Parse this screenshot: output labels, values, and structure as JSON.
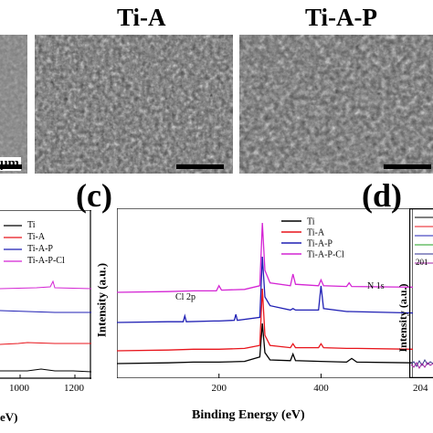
{
  "top_row": {
    "panels": [
      {
        "title": "",
        "scale_text": "μm"
      },
      {
        "title": "Ti-A",
        "scale_text": ""
      },
      {
        "title": "Ti-A-P",
        "scale_text": ""
      }
    ]
  },
  "panel_c": {
    "label": "(c)",
    "annotations": {
      "cl2p": "Cl 2p",
      "n1s": "N 1s"
    }
  },
  "panel_d": {
    "label": "(d)",
    "peak_label": "201",
    "ylabel": "Intensity (a.u.)",
    "tick": "204"
  },
  "left_panel": {
    "tick_labels": [
      "1000",
      "1200"
    ],
    "legend": [
      "Ti",
      "Ti-A",
      "Ti-A-P",
      "Ti-A-P-Cl"
    ],
    "xlabel_fragment": "eV)"
  },
  "chart_data": [
    {
      "type": "line",
      "title": "",
      "xlabel": "Binding Energy (eV)",
      "ylabel": "Intensity (a.u.)",
      "xticks": [
        200,
        400
      ],
      "xlim": [
        0,
        580
      ],
      "legend_position": "top-right",
      "series": [
        {
          "name": "Ti",
          "color": "#000000",
          "points": [
            [
              0,
              5
            ],
            [
              100,
              6
            ],
            [
              150,
              7
            ],
            [
              200,
              7
            ],
            [
              250,
              8
            ],
            [
              280,
              14
            ],
            [
              285,
              60
            ],
            [
              290,
              20
            ],
            [
              300,
              10
            ],
            [
              340,
              9
            ],
            [
              345,
              18
            ],
            [
              350,
              9
            ],
            [
              400,
              8
            ],
            [
              450,
              7
            ],
            [
              460,
              12
            ],
            [
              470,
              7
            ],
            [
              580,
              6
            ]
          ]
        },
        {
          "name": "Ti-A",
          "color": "#e8141b",
          "points": [
            [
              0,
              5
            ],
            [
              100,
              6
            ],
            [
              150,
              7
            ],
            [
              200,
              7
            ],
            [
              250,
              8
            ],
            [
              280,
              12
            ],
            [
              285,
              85
            ],
            [
              290,
              25
            ],
            [
              300,
              12
            ],
            [
              340,
              9
            ],
            [
              345,
              14
            ],
            [
              350,
              9
            ],
            [
              395,
              9
            ],
            [
              400,
              14
            ],
            [
              405,
              9
            ],
            [
              450,
              8
            ],
            [
              470,
              8
            ],
            [
              580,
              7
            ]
          ]
        },
        {
          "name": "Ti-A-P",
          "color": "#1f1fb4",
          "points": [
            [
              0,
              5
            ],
            [
              100,
              6
            ],
            [
              130,
              6
            ],
            [
              133,
              14
            ],
            [
              136,
              6
            ],
            [
              190,
              7
            ],
            [
              200,
              7
            ],
            [
              230,
              8
            ],
            [
              233,
              16
            ],
            [
              236,
              8
            ],
            [
              280,
              12
            ],
            [
              285,
              95
            ],
            [
              290,
              40
            ],
            [
              300,
              28
            ],
            [
              340,
              22
            ],
            [
              345,
              24
            ],
            [
              350,
              22
            ],
            [
              395,
              22
            ],
            [
              400,
              55
            ],
            [
              405,
              24
            ],
            [
              450,
              20
            ],
            [
              580,
              18
            ]
          ]
        },
        {
          "name": "Ti-A-P-Cl",
          "color": "#d425d4",
          "points": [
            [
              0,
              5
            ],
            [
              100,
              6
            ],
            [
              150,
              7
            ],
            [
              195,
              7
            ],
            [
              200,
              14
            ],
            [
              205,
              8
            ],
            [
              250,
              9
            ],
            [
              280,
              14
            ],
            [
              285,
              100
            ],
            [
              290,
              35
            ],
            [
              300,
              18
            ],
            [
              340,
              14
            ],
            [
              345,
              30
            ],
            [
              350,
              16
            ],
            [
              395,
              14
            ],
            [
              400,
              22
            ],
            [
              405,
              14
            ],
            [
              450,
              13
            ],
            [
              455,
              18
            ],
            [
              460,
              13
            ],
            [
              580,
              12
            ]
          ]
        }
      ]
    }
  ]
}
